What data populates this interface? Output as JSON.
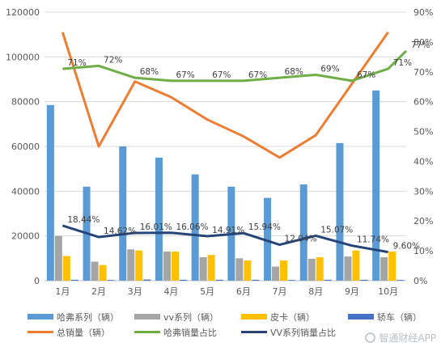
{
  "chart_data": {
    "type": "bar",
    "categories": [
      "1月",
      "2月",
      "3月",
      "4月",
      "5月",
      "6月",
      "7月",
      "8月",
      "9月",
      "10月"
    ],
    "y_left": {
      "ticks": [
        0,
        20000,
        40000,
        60000,
        80000,
        100000,
        120000
      ],
      "min": 0,
      "max": 120000
    },
    "y_right": {
      "ticks": [
        "0%",
        "10%",
        "20%",
        "30%",
        "40%",
        "50%",
        "60%",
        "70%",
        "80%",
        "90%"
      ],
      "min": 0,
      "max": 90
    },
    "bar_series": [
      {
        "name": "哈弗系列（辆）",
        "color": "#5b9bd5",
        "values": [
          78500,
          42000,
          60000,
          55000,
          47500,
          42000,
          37000,
          43000,
          61500,
          85000
        ]
      },
      {
        "name": "vv系列（辆）",
        "color": "#a5a5a5",
        "values": [
          20000,
          8500,
          14000,
          13000,
          10500,
          10000,
          6300,
          9800,
          10800,
          10500
        ]
      },
      {
        "name": "皮卡（辆）",
        "color": "#ffc000",
        "values": [
          11000,
          7000,
          13500,
          13000,
          11500,
          9000,
          9000,
          10500,
          13500,
          13000
        ]
      },
      {
        "name": "轿车（辆）",
        "color": "#4472c4",
        "values": [
          400,
          300,
          500,
          400,
          400,
          400,
          300,
          400,
          400,
          300
        ]
      }
    ],
    "line_series": [
      {
        "name": "总销量（辆）",
        "color": "#ed7d31",
        "axis": "left",
        "values": [
          111000,
          60000,
          89000,
          82000,
          72000,
          64500,
          55000,
          65000,
          88000,
          111000
        ]
      },
      {
        "name": "哈弗销量占比",
        "color": "#70ad47",
        "axis": "right",
        "values": [
          71,
          72,
          68,
          67,
          67,
          67,
          68,
          69,
          67,
          71,
          77
        ],
        "x_index": [
          0,
          1,
          2,
          3,
          4,
          5,
          6,
          7,
          8,
          9,
          9.5
        ],
        "labels": [
          "71%",
          "72%",
          "68%",
          "67%",
          "67%",
          "67%",
          "68%",
          "69%",
          "67%",
          "71%",
          "77%"
        ]
      },
      {
        "name": "VV系列销量占比",
        "color": "#264478",
        "axis": "right",
        "values": [
          18.44,
          14.62,
          16.01,
          16.06,
          14.91,
          15.94,
          12.04,
          15.07,
          11.74,
          9.6
        ],
        "labels": [
          "18.44%",
          "14.62%",
          "16.01%",
          "16.06%",
          "14.91%",
          "15.94%",
          "12.04%",
          "15.07%",
          "11.74%",
          "9.60%"
        ]
      }
    ],
    "legend_position": "bottom",
    "grid": true
  },
  "watermark": "智通财经APP"
}
